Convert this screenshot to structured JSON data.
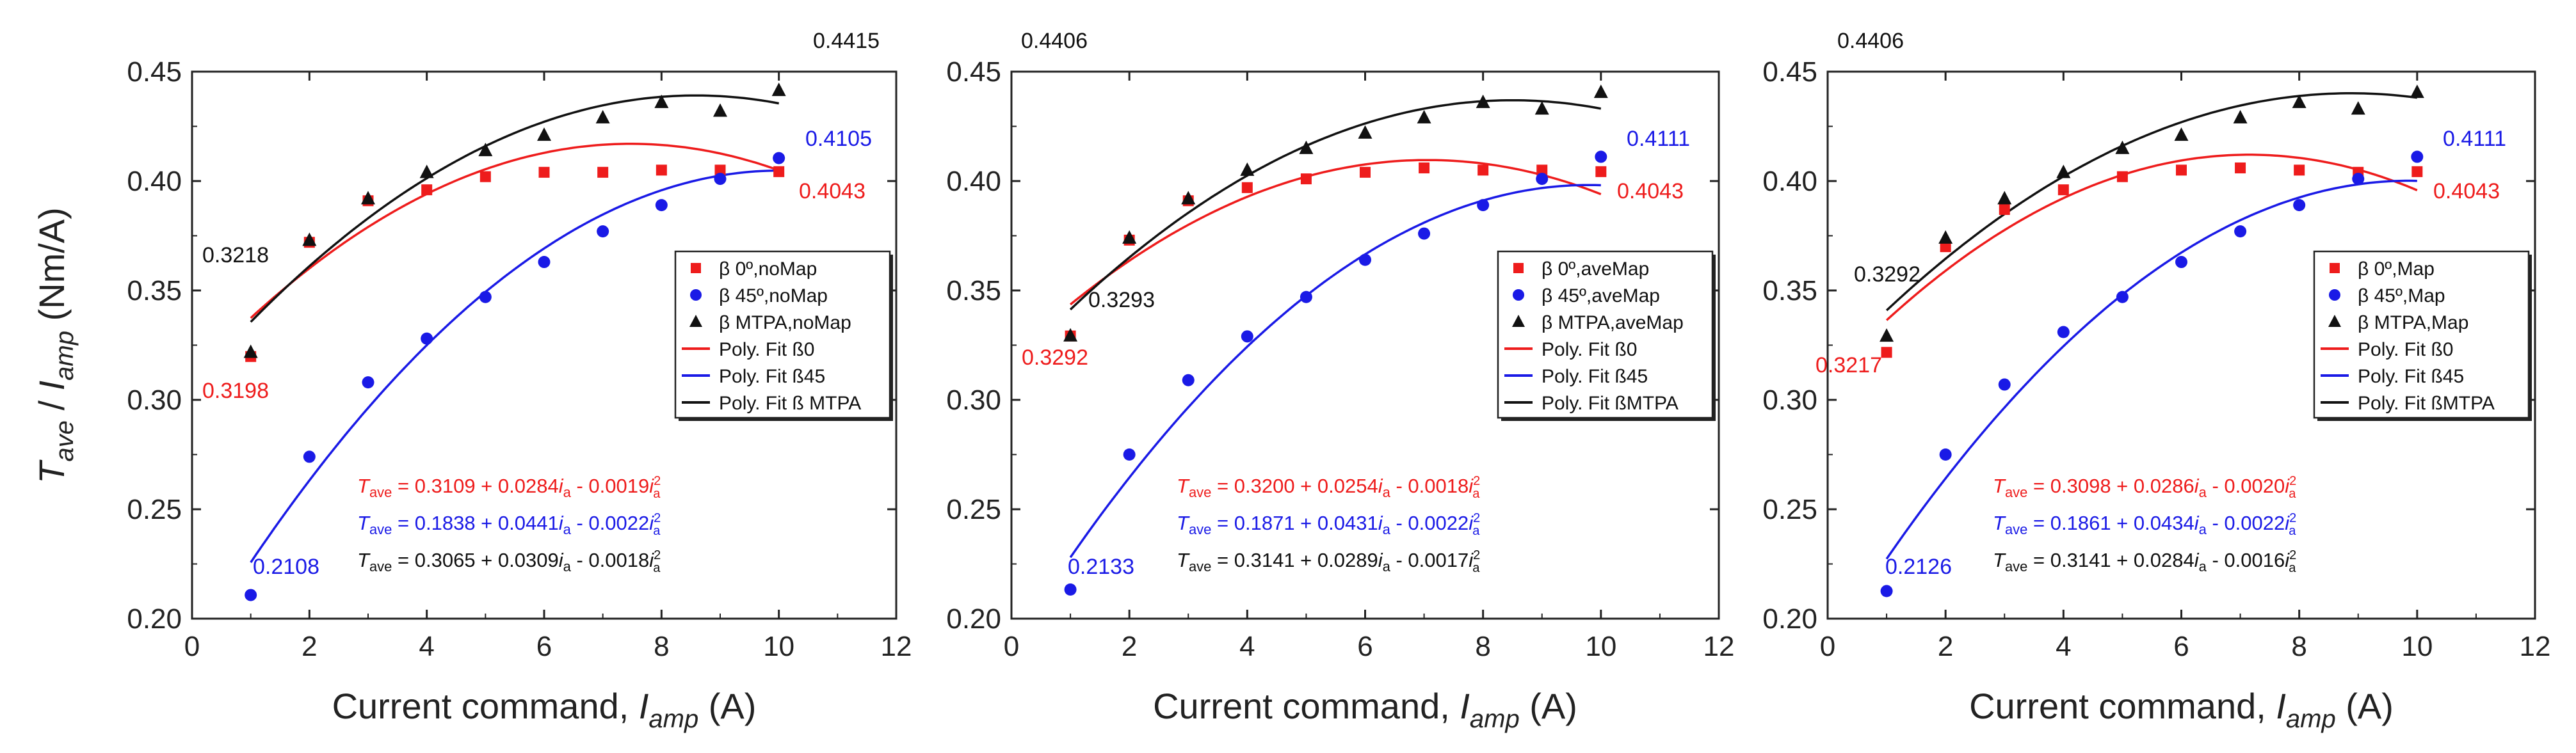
{
  "figure": {
    "ylabel_main": "T",
    "ylabel_main_sub": "ave",
    "ylabel_sep": " / ",
    "ylabel_den": "I",
    "ylabel_den_sub": "amp",
    "ylabel_unit": "  (Nm/A)",
    "xlabel_main": "Current command, ",
    "xlabel_var": "I",
    "xlabel_var_sub": "amp",
    "xlabel_unit": " (A)"
  },
  "colors": {
    "red": "#ee1c1c",
    "blue": "#1a1ae6",
    "black": "#111111"
  },
  "chart_data": [
    {
      "type": "scatter",
      "panel": "noMap",
      "xlim": [
        0,
        12
      ],
      "ylim": [
        0.2,
        0.45
      ],
      "xticks": [
        "0",
        "2",
        "4",
        "6",
        "8",
        "10",
        "12"
      ],
      "yticks": [
        "0.20",
        "0.25",
        "0.30",
        "0.35",
        "0.40",
        "0.45"
      ],
      "x": [
        1,
        2,
        3,
        4,
        5,
        6,
        7,
        8,
        9,
        10
      ],
      "series": [
        {
          "name": "β 0º,noMap",
          "color": "red",
          "marker": "square",
          "values": [
            0.3198,
            0.372,
            0.391,
            0.396,
            0.402,
            0.404,
            0.404,
            0.405,
            0.405,
            0.4043
          ]
        },
        {
          "name": "β 45º,noMap",
          "color": "blue",
          "marker": "circle",
          "values": [
            0.2108,
            0.274,
            0.308,
            0.328,
            0.347,
            0.363,
            0.377,
            0.389,
            0.401,
            0.4105
          ]
        },
        {
          "name": "β MTPA,noMap",
          "color": "black",
          "marker": "triangle",
          "values": [
            0.3218,
            0.373,
            0.392,
            0.404,
            0.414,
            0.421,
            0.429,
            0.436,
            0.432,
            0.4415
          ]
        }
      ],
      "fits": [
        {
          "name": "Poly. Fit ß0",
          "color": "red",
          "coeffs": [
            0.3109,
            0.0284,
            -0.0019
          ]
        },
        {
          "name": "Poly. Fit ß45",
          "color": "blue",
          "coeffs": [
            0.1838,
            0.0441,
            -0.0022
          ]
        },
        {
          "name": "Poly. Fit ß MTPA",
          "color": "black",
          "coeffs": [
            0.3065,
            0.0309,
            -0.0018
          ]
        }
      ],
      "annotations": [
        {
          "text": "0.4415",
          "color": "black"
        },
        {
          "text": "0.4105",
          "color": "blue"
        },
        {
          "text": "0.4043",
          "color": "red"
        },
        {
          "text": "0.3218",
          "color": "black"
        },
        {
          "text": "0.3198",
          "color": "red"
        },
        {
          "text": "0.2108",
          "color": "blue"
        }
      ],
      "equations": [
        {
          "color": "red",
          "pre": " = 0.3109 + 0.0284",
          "mid": " - 0.0019"
        },
        {
          "color": "blue",
          "pre": " = 0.1838 + 0.0441",
          "mid": " - 0.0022"
        },
        {
          "color": "black",
          "pre": " = 0.3065 + 0.0309",
          "mid": " - 0.0018"
        }
      ]
    },
    {
      "type": "scatter",
      "panel": "aveMap",
      "xlim": [
        0,
        12
      ],
      "ylim": [
        0.2,
        0.45
      ],
      "xticks": [
        "0",
        "2",
        "4",
        "6",
        "8",
        "10",
        "12"
      ],
      "yticks": [
        "0.20",
        "0.25",
        "0.30",
        "0.35",
        "0.40",
        "0.45"
      ],
      "x": [
        1,
        2,
        3,
        4,
        5,
        6,
        7,
        8,
        9,
        10
      ],
      "series": [
        {
          "name": "β 0º,aveMap",
          "color": "red",
          "marker": "square",
          "values": [
            0.3292,
            0.373,
            0.391,
            0.397,
            0.401,
            0.404,
            0.406,
            0.405,
            0.405,
            0.4043
          ]
        },
        {
          "name": "β 45º,aveMap",
          "color": "blue",
          "marker": "circle",
          "values": [
            0.2133,
            0.275,
            0.309,
            0.329,
            0.347,
            0.364,
            0.376,
            0.389,
            0.401,
            0.4111
          ]
        },
        {
          "name": "β MTPA,aveMap",
          "color": "black",
          "marker": "triangle",
          "values": [
            0.3293,
            0.374,
            0.392,
            0.405,
            0.415,
            0.422,
            0.429,
            0.436,
            0.433,
            0.4406
          ]
        }
      ],
      "fits": [
        {
          "name": "Poly. Fit ß0",
          "color": "red",
          "coeffs": [
            0.32,
            0.0254,
            -0.0018
          ]
        },
        {
          "name": "Poly. Fit ß45",
          "color": "blue",
          "coeffs": [
            0.1871,
            0.0431,
            -0.0022
          ]
        },
        {
          "name": "Poly. Fit ßMTPA",
          "color": "black",
          "coeffs": [
            0.3141,
            0.0289,
            -0.0017
          ]
        }
      ],
      "annotations": [
        {
          "text": "0.4406",
          "color": "black"
        },
        {
          "text": "0.4111",
          "color": "blue"
        },
        {
          "text": "0.4043",
          "color": "red"
        },
        {
          "text": "0.3293",
          "color": "black"
        },
        {
          "text": "0.3292",
          "color": "red"
        },
        {
          "text": "0.2133",
          "color": "blue"
        }
      ],
      "equations": [
        {
          "color": "red",
          "pre": " = 0.3200 + 0.0254",
          "mid": " - 0.0018"
        },
        {
          "color": "blue",
          "pre": " = 0.1871 + 0.0431",
          "mid": " - 0.0022"
        },
        {
          "color": "black",
          "pre": " = 0.3141 + 0.0289",
          "mid": " - 0.0017"
        }
      ]
    },
    {
      "type": "scatter",
      "panel": "Map",
      "xlim": [
        0,
        12
      ],
      "ylim": [
        0.2,
        0.45
      ],
      "xticks": [
        "0",
        "2",
        "4",
        "6",
        "8",
        "10",
        "12"
      ],
      "yticks": [
        "0.20",
        "0.25",
        "0.30",
        "0.35",
        "0.40",
        "0.45"
      ],
      "x": [
        1,
        2,
        3,
        4,
        5,
        6,
        7,
        8,
        9,
        10
      ],
      "series": [
        {
          "name": "β 0º,Map",
          "color": "red",
          "marker": "square",
          "values": [
            0.3217,
            0.37,
            0.387,
            0.396,
            0.402,
            0.405,
            0.406,
            0.405,
            0.404,
            0.4043
          ]
        },
        {
          "name": "β 45º,Map",
          "color": "blue",
          "marker": "circle",
          "values": [
            0.2126,
            0.275,
            0.307,
            0.331,
            0.347,
            0.363,
            0.377,
            0.389,
            0.401,
            0.4111
          ]
        },
        {
          "name": "β MTPA,Map",
          "color": "black",
          "marker": "triangle",
          "values": [
            0.3292,
            0.374,
            0.392,
            0.404,
            0.415,
            0.421,
            0.429,
            0.436,
            0.433,
            0.4406
          ]
        }
      ],
      "fits": [
        {
          "name": "Poly. Fit ß0",
          "color": "red",
          "coeffs": [
            0.3098,
            0.0286,
            -0.002
          ]
        },
        {
          "name": "Poly. Fit ß45",
          "color": "blue",
          "coeffs": [
            0.1861,
            0.0434,
            -0.0022
          ]
        },
        {
          "name": "Poly. Fit ßMTPA",
          "color": "black",
          "coeffs": [
            0.3141,
            0.0284,
            -0.0016
          ]
        }
      ],
      "annotations": [
        {
          "text": "0.4406",
          "color": "black"
        },
        {
          "text": "0.4111",
          "color": "blue"
        },
        {
          "text": "0.4043",
          "color": "red"
        },
        {
          "text": "0.3292",
          "color": "black"
        },
        {
          "text": "0.3217",
          "color": "red"
        },
        {
          "text": "0.2126",
          "color": "blue"
        }
      ],
      "equations": [
        {
          "color": "red",
          "pre": " = 0.3098 + 0.0286",
          "mid": " - 0.0020"
        },
        {
          "color": "blue",
          "pre": " = 0.1861 + 0.0434",
          "mid": " - 0.0022"
        },
        {
          "color": "black",
          "pre": " = 0.3141 + 0.0284",
          "mid": " - 0.0016"
        }
      ]
    }
  ]
}
